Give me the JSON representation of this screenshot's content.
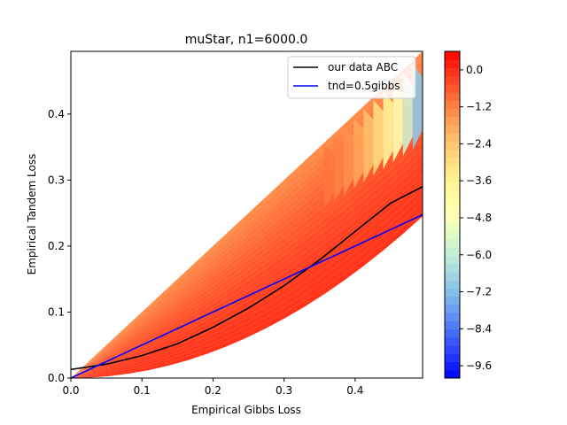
{
  "chart_data": {
    "type": "filled-contour",
    "title": "muStar, n1=6000.0",
    "xlabel": "Empirical Gibbs Loss",
    "ylabel": "Empirical Tandem Loss",
    "xlim": [
      0.0,
      0.495
    ],
    "ylim": [
      0.0,
      0.495
    ],
    "xticks": [
      "0.0",
      "0.1",
      "0.2",
      "0.3",
      "0.4"
    ],
    "yticks": [
      "0.0",
      "0.1",
      "0.2",
      "0.3",
      "0.4"
    ],
    "grid": false,
    "legend_placement": "top-right",
    "region": {
      "description_bounds": "feasible region between y = x^2 (lower) and y = x (upper)",
      "fill_levels_vmin": -10.0,
      "fill_levels_vmax": 0.6
    },
    "series": [
      {
        "name": "our data ABC",
        "color": "#000000",
        "x": [
          0.0,
          0.05,
          0.1,
          0.15,
          0.2,
          0.25,
          0.3,
          0.35,
          0.4,
          0.45,
          0.495
        ],
        "y": [
          0.013,
          0.021,
          0.034,
          0.052,
          0.077,
          0.106,
          0.14,
          0.179,
          0.222,
          0.265,
          0.29
        ]
      },
      {
        "name": "tnd=0.5gibbs",
        "color": "#0000ff",
        "x": [
          0.0,
          0.495
        ],
        "y": [
          0.0,
          0.2475
        ]
      }
    ],
    "colorbar": {
      "colormap": "rainbow",
      "range": [
        -10.0,
        0.6
      ],
      "tick_values": [
        0.0,
        -1.2,
        -2.4,
        -3.6,
        -4.8,
        -6.0,
        -7.2,
        -8.4,
        -9.6
      ],
      "tick_labels": [
        "0.0",
        "−1.2",
        "−2.4",
        "−3.6",
        "−4.8",
        "−6.0",
        "−7.2",
        "−8.4",
        "−9.6"
      ]
    }
  }
}
